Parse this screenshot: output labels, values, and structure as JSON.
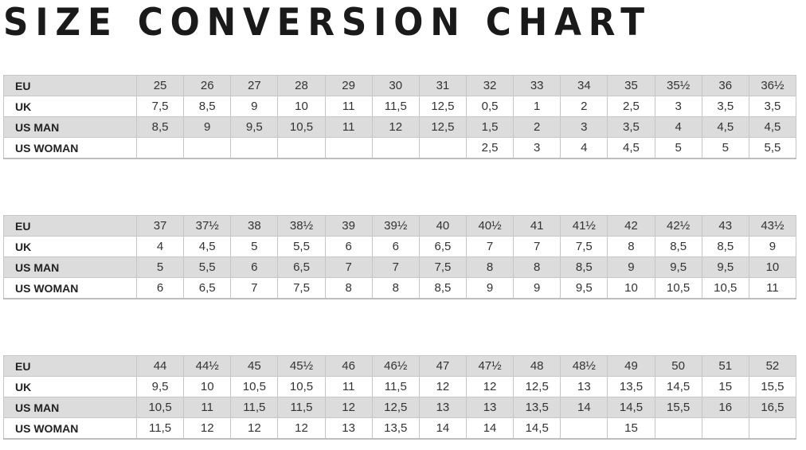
{
  "title": "SIZE CONVERSION CHART",
  "row_labels": [
    "EU",
    "UK",
    "US MAN",
    "US WOMAN"
  ],
  "tables": [
    {
      "rows": [
        [
          "25",
          "26",
          "27",
          "28",
          "29",
          "30",
          "31",
          "32",
          "33",
          "34",
          "35",
          "35½",
          "36",
          "36½"
        ],
        [
          "7,5",
          "8,5",
          "9",
          "10",
          "11",
          "11,5",
          "12,5",
          "0,5",
          "1",
          "2",
          "2,5",
          "3",
          "3,5",
          "3,5"
        ],
        [
          "8,5",
          "9",
          "9,5",
          "10,5",
          "11",
          "12",
          "12,5",
          "1,5",
          "2",
          "3",
          "3,5",
          "4",
          "4,5",
          "4,5"
        ],
        [
          "",
          "",
          "",
          "",
          "",
          "",
          "",
          "2,5",
          "3",
          "4",
          "4,5",
          "5",
          "5",
          "5,5"
        ]
      ]
    },
    {
      "rows": [
        [
          "37",
          "37½",
          "38",
          "38½",
          "39",
          "39½",
          "40",
          "40½",
          "41",
          "41½",
          "42",
          "42½",
          "43",
          "43½"
        ],
        [
          "4",
          "4,5",
          "5",
          "5,5",
          "6",
          "6",
          "6,5",
          "7",
          "7",
          "7,5",
          "8",
          "8,5",
          "8,5",
          "9"
        ],
        [
          "5",
          "5,5",
          "6",
          "6,5",
          "7",
          "7",
          "7,5",
          "8",
          "8",
          "8,5",
          "9",
          "9,5",
          "9,5",
          "10"
        ],
        [
          "6",
          "6,5",
          "7",
          "7,5",
          "8",
          "8",
          "8,5",
          "9",
          "9",
          "9,5",
          "10",
          "10,5",
          "10,5",
          "11"
        ]
      ]
    },
    {
      "rows": [
        [
          "44",
          "44½",
          "45",
          "45½",
          "46",
          "46½",
          "47",
          "47½",
          "48",
          "48½",
          "49",
          "50",
          "51",
          "52"
        ],
        [
          "9,5",
          "10",
          "10,5",
          "10,5",
          "11",
          "11,5",
          "12",
          "12",
          "12,5",
          "13",
          "13,5",
          "14,5",
          "15",
          "15,5"
        ],
        [
          "10,5",
          "11",
          "11,5",
          "11,5",
          "12",
          "12,5",
          "13",
          "13",
          "13,5",
          "14",
          "14,5",
          "15,5",
          "16",
          "16,5"
        ],
        [
          "11,5",
          "12",
          "12",
          "12",
          "13",
          "13,5",
          "14",
          "14",
          "14,5",
          "",
          "15",
          "",
          "",
          ""
        ]
      ]
    }
  ]
}
